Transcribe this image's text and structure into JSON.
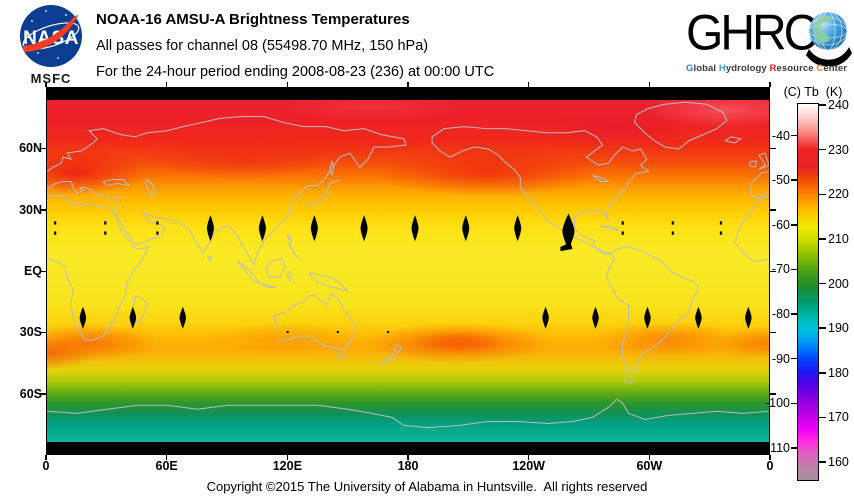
{
  "header": {
    "title_line1": "NOAA-16 AMSU-A Brightness Temperatures",
    "title_line2": "All passes for channel 08 (55498.70 MHz, 150 hPa)",
    "title_line3": "For the 24-hour period ending 2008-08-23 (236) at 00:00 UTC",
    "nasa_logo": {
      "acronym": "NASA",
      "center_label": "MSFC"
    },
    "ghrc_logo": {
      "acronym": "GHRC",
      "tagline_words": [
        {
          "text": "Global",
          "initial_color": "#2f7fc1"
        },
        {
          "text": "Hydrology",
          "initial_color": "#36a9e1"
        },
        {
          "text": "Resource",
          "initial_color": "#cf2027"
        },
        {
          "text": "Center",
          "initial_color": "#f08019"
        }
      ],
      "tagline_rest_color": "#3c3c3c"
    }
  },
  "map": {
    "lat_ticks": [
      {
        "label": "60N",
        "lat": 60
      },
      {
        "label": "30N",
        "lat": 30
      },
      {
        "label": "EQ",
        "lat": 0
      },
      {
        "label": "30S",
        "lat": -30
      },
      {
        "label": "60S",
        "lat": -60
      }
    ],
    "lon_ticks": [
      {
        "label": "0",
        "lon": 0
      },
      {
        "label": "60E",
        "lon": 60
      },
      {
        "label": "120E",
        "lon": 120
      },
      {
        "label": "180",
        "lon": 180
      },
      {
        "label": "120W",
        "lon": 240
      },
      {
        "label": "60W",
        "lon": 300
      },
      {
        "label": "0",
        "lon": 360
      }
    ],
    "coastline_color": "#bcbcbc",
    "no_data_color": "#000000"
  },
  "colorbar": {
    "title": "(C) Tb  (K)",
    "kelvin_ticks": [
      240,
      230,
      220,
      210,
      200,
      190,
      180,
      170,
      160
    ],
    "celsius_ticks": [
      -40,
      -50,
      -60,
      -70,
      -80,
      -90,
      -100,
      -110
    ]
  },
  "footer": {
    "copyright": "Copyright ©2015 The University of Alabama in Huntsville.  All rights reserved"
  },
  "chart_data": {
    "type": "heatmap",
    "title": "NOAA-16 AMSU-A Brightness Temperatures",
    "subtitle": [
      "All passes for channel 08 (55498.70 MHz, 150 hPa)",
      "For the 24-hour period ending 2008-08-23 (236) at 00:00 UTC"
    ],
    "projection": "equirectangular world map, longitude 0E eastward to 360E, latitude 90N to 90S",
    "x_tick_labels": [
      "0",
      "60E",
      "120E",
      "180",
      "120W",
      "60W",
      "0"
    ],
    "y_tick_labels": [
      "60N",
      "30N",
      "EQ",
      "30S",
      "60S"
    ],
    "colorbar": {
      "quantity": "Tb",
      "units": [
        "C",
        "K"
      ],
      "kelvin_ticks": [
        240,
        230,
        220,
        210,
        200,
        190,
        180,
        170,
        160
      ],
      "celsius_ticks": [
        -40,
        -50,
        -60,
        -70,
        -80,
        -90,
        -100,
        -110
      ],
      "range_K": [
        156,
        240
      ],
      "scale_colors_top_to_bottom": [
        "white",
        "red",
        "orange",
        "yellow",
        "green",
        "teal",
        "cyan",
        "blue",
        "violet",
        "magenta",
        "gray-pink"
      ]
    },
    "zonal_mean_Tb_K": [
      {
        "lat": 84,
        "Tb": 229
      },
      {
        "lat": 70,
        "Tb": 230
      },
      {
        "lat": 60,
        "Tb": 229
      },
      {
        "lat": 50,
        "Tb": 226
      },
      {
        "lat": 40,
        "Tb": 222
      },
      {
        "lat": 30,
        "Tb": 218
      },
      {
        "lat": 20,
        "Tb": 216
      },
      {
        "lat": 10,
        "Tb": 215
      },
      {
        "lat": 0,
        "Tb": 215
      },
      {
        "lat": -10,
        "Tb": 215
      },
      {
        "lat": -20,
        "Tb": 216
      },
      {
        "lat": -30,
        "Tb": 218
      },
      {
        "lat": -40,
        "Tb": 220
      },
      {
        "lat": -50,
        "Tb": 213
      },
      {
        "lat": -57,
        "Tb": 206
      },
      {
        "lat": -63,
        "Tb": 199
      },
      {
        "lat": -70,
        "Tb": 196
      },
      {
        "lat": -84,
        "Tb": 194
      }
    ],
    "no_data_regions": {
      "polar_strips": "black bands poleward of ~84N and ~84S",
      "gap_marks": {
        "north_row_lat": 21,
        "north_lens_lons": [
          81.5,
          107.4,
          133.3,
          158.1,
          183.5,
          208.8,
          234.7
        ],
        "north_big_gap_lon": 260,
        "north_dash_lons": [
          4,
          29,
          55,
          287,
          312,
          336
        ],
        "south_row_lat": -23,
        "south_lens_lons": [
          17.9,
          42.8,
          67.7,
          248.6,
          273.5,
          299.4,
          324.8,
          349.7
        ],
        "south_dot_lat": -30,
        "south_dot_lons": [
          120,
          145,
          170
        ]
      }
    },
    "notes": [
      "warm red anomalies (~225K) band near 45-60N",
      "orange warm band (~219-222K) near 35-45S",
      "green-to-teal cold region (<205K) south of 55S over Antarctica"
    ]
  }
}
